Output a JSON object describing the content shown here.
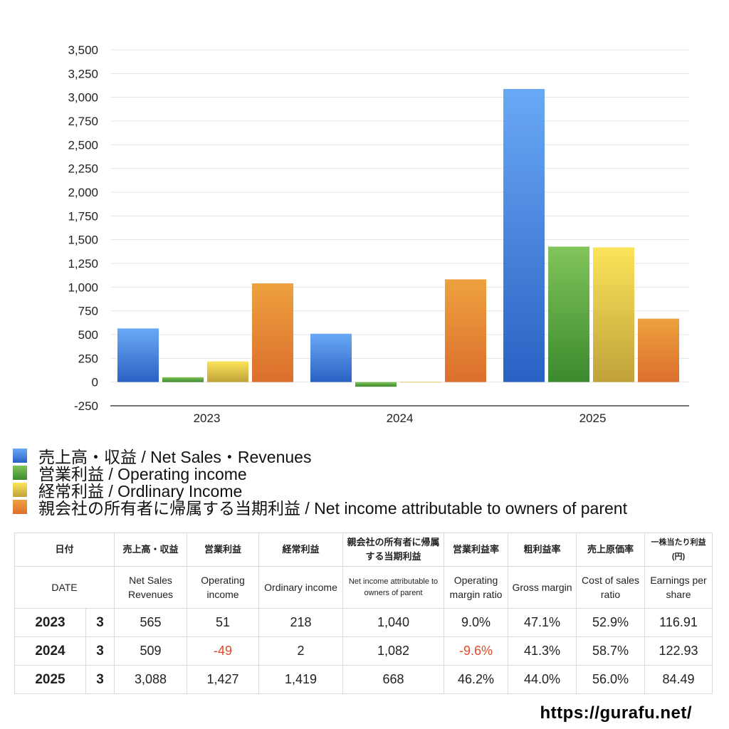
{
  "chart_data": {
    "type": "bar",
    "categories": [
      "2023",
      "2024",
      "2025"
    ],
    "ylim": [
      -250,
      3500
    ],
    "yticks": [
      -250,
      0,
      250,
      500,
      750,
      1000,
      1250,
      1500,
      1750,
      2000,
      2250,
      2500,
      2750,
      3000,
      3250,
      3500
    ],
    "ytick_labels": [
      "-250",
      "0",
      "250",
      "500",
      "750",
      "1,000",
      "1,250",
      "1,500",
      "1,750",
      "2,000",
      "2,250",
      "2,500",
      "2,750",
      "3,000",
      "3,250",
      "3,500"
    ],
    "grid": true,
    "legend_position": "bottom",
    "series": [
      {
        "name": "売上高・収益 / Net Sales・Revenues",
        "values": [
          565,
          509,
          3088
        ],
        "color_top": "#6aa9f5",
        "color_bottom": "#2a62c4"
      },
      {
        "name": "営業利益 / Operating income",
        "values": [
          51,
          -49,
          1427
        ],
        "color_top": "#82c45a",
        "color_bottom": "#3a8a2e"
      },
      {
        "name": "経常利益 / Ordlinary Income",
        "values": [
          218,
          2,
          1419
        ],
        "color_top": "#fbe45a",
        "color_bottom": "#c0a23a"
      },
      {
        "name": "親会社の所有者に帰属する当期利益 / Net income attributable to owners of parent",
        "values": [
          1040,
          1082,
          668
        ],
        "color_top": "#eda13e",
        "color_bottom": "#dc6f2e"
      }
    ]
  },
  "table": {
    "header_jp": [
      "日付",
      "売上高・収益",
      "営業利益",
      "経常利益",
      "親会社の所有者に帰属する当期利益",
      "営業利益率",
      "粗利益率",
      "売上原価率",
      "一株当たり利益 (円)"
    ],
    "header_en": [
      "DATE",
      "Net Sales Revenues",
      "Operating income",
      "Ordinary income",
      "Net income attributable to owners of parent",
      "Operating margin ratio",
      "Gross margin",
      "Cost of sales ratio",
      "Earnings per share"
    ],
    "rows": [
      {
        "year": "2023",
        "month": "3",
        "sales": "565",
        "op": "51",
        "ord": "218",
        "net": "1,040",
        "op_margin": "9.0%",
        "gross": "47.1%",
        "cost": "52.9%",
        "eps": "116.91"
      },
      {
        "year": "2024",
        "month": "3",
        "sales": "509",
        "op": "-49",
        "ord": "2",
        "net": "1,082",
        "op_margin": "-9.6%",
        "gross": "41.3%",
        "cost": "58.7%",
        "eps": "122.93"
      },
      {
        "year": "2025",
        "month": "3",
        "sales": "3,088",
        "op": "1,427",
        "ord": "1,419",
        "net": "668",
        "op_margin": "46.2%",
        "gross": "44.0%",
        "cost": "56.0%",
        "eps": "84.49"
      }
    ]
  },
  "site_url": "https://gurafu.net/"
}
